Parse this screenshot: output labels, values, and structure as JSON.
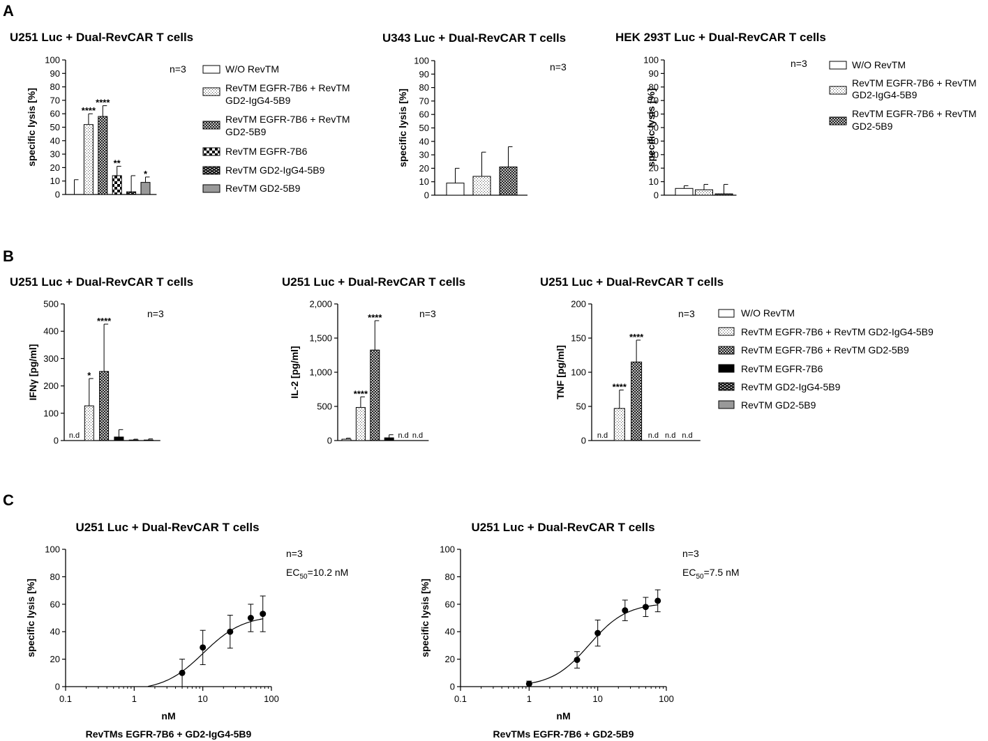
{
  "panels": {
    "a": "A",
    "b": "B",
    "c": "C"
  },
  "legend_bars": {
    "wo": "W/O RevTM",
    "egfr_igg4_l1": "RevTM EGFR-7B6 + RevTM",
    "egfr_igg4_l2": "GD2-IgG4-5B9",
    "egfr_5b9_l1": "RevTM EGFR-7B6 + RevTM",
    "egfr_5b9_l2": "GD2-5B9",
    "egfr": "RevTM EGFR-7B6",
    "igg4": "RevTM GD2-IgG4-5B9",
    "gd2": "RevTM GD2-5B9"
  },
  "legend_b": {
    "wo": "W/O RevTM",
    "egfr_igg4": "RevTM EGFR-7B6 + RevTM GD2-IgG4-5B9",
    "egfr_5b9": "RevTM EGFR-7B6 + RevTM GD2-5B9",
    "egfr": "RevTM EGFR-7B6",
    "igg4": "RevTM GD2-IgG4-5B9",
    "gd2": "RevTM GD2-5B9"
  },
  "colors": {
    "black": "#000000",
    "gray": "#999999",
    "white": "#ffffff"
  },
  "chart_data": [
    {
      "id": "a1",
      "type": "bar",
      "title": "U251 Luc + Dual-RevCAR T cells",
      "ylabel": "specific lysis [%]",
      "xlabel": "",
      "note": "n=3",
      "ylim": [
        0,
        100
      ],
      "yticks": [
        "0",
        "10",
        "20",
        "30",
        "40",
        "50",
        "60",
        "70",
        "80",
        "90",
        "100"
      ],
      "categories": [
        "W/O RevTM",
        "RevTM EGFR-7B6 + RevTM GD2-IgG4-5B9",
        "RevTM EGFR-7B6 + RevTM GD2-5B9",
        "RevTM EGFR-7B6",
        "RevTM GD2-IgG4-5B9",
        "RevTM GD2-5B9"
      ],
      "values": [
        0,
        52,
        58,
        14,
        2,
        9
      ],
      "errors": [
        11,
        8,
        8,
        7,
        12,
        4
      ],
      "significance": [
        "",
        "****",
        "****",
        "**",
        "",
        "*"
      ]
    },
    {
      "id": "a2",
      "type": "bar",
      "title": "U343 Luc + Dual-RevCAR T cells",
      "ylabel": "specific lysis [%]",
      "xlabel": "",
      "note": "n=3",
      "ylim": [
        0,
        100
      ],
      "yticks": [
        "0",
        "10",
        "20",
        "30",
        "40",
        "50",
        "60",
        "70",
        "80",
        "90",
        "100"
      ],
      "categories": [
        "W/O RevTM",
        "RevTM EGFR-7B6 + RevTM GD2-IgG4-5B9",
        "RevTM EGFR-7B6 + RevTM GD2-5B9"
      ],
      "values": [
        9,
        14,
        21
      ],
      "errors": [
        11,
        18,
        15
      ],
      "significance": [
        "",
        "",
        ""
      ]
    },
    {
      "id": "a3",
      "type": "bar",
      "title": "HEK 293T Luc + Dual-RevCAR T cells",
      "ylabel": "specific lysis [%]",
      "xlabel": "",
      "note": "n=3",
      "ylim": [
        0,
        100
      ],
      "yticks": [
        "0",
        "10",
        "20",
        "30",
        "40",
        "50",
        "60",
        "70",
        "80",
        "90",
        "100"
      ],
      "categories": [
        "W/O RevTM",
        "RevTM EGFR-7B6 + RevTM GD2-IgG4-5B9",
        "RevTM EGFR-7B6 + RevTM GD2-5B9"
      ],
      "values": [
        5,
        4,
        1
      ],
      "errors": [
        2,
        4,
        7
      ],
      "significance": [
        "",
        "",
        ""
      ]
    },
    {
      "id": "b1",
      "type": "bar",
      "title": "U251 Luc + Dual-RevCAR T cells",
      "ylabel": "IFNγ [pg/ml]",
      "xlabel": "",
      "note": "n=3",
      "ylim": [
        0,
        500
      ],
      "yticks": [
        "0",
        "100",
        "200",
        "300",
        "400",
        "500"
      ],
      "categories": [
        "W/O RevTM",
        "RevTM EGFR-7B6 + RevTM GD2-IgG4-5B9",
        "RevTM EGFR-7B6 + RevTM GD2-5B9",
        "RevTM EGFR-7B6",
        "RevTM GD2-IgG4-5B9",
        "RevTM GD2-5B9"
      ],
      "values": [
        0,
        127,
        253,
        13,
        2,
        2
      ],
      "errors": [
        0,
        100,
        173,
        27,
        3,
        4
      ],
      "significance": [
        "",
        "*",
        "****",
        "",
        "",
        ""
      ],
      "annotations": [
        "n.d",
        "",
        "",
        "",
        "",
        ""
      ]
    },
    {
      "id": "b2",
      "type": "bar",
      "title": "U251 Luc + Dual-RevCAR T cells",
      "ylabel": "IL-2 [pg/ml]",
      "xlabel": "",
      "note": "n=3",
      "ylim": [
        0,
        2000
      ],
      "yticks": [
        "0",
        "500",
        "1,000",
        "1,500",
        "2,000"
      ],
      "categories": [
        "W/O RevTM",
        "RevTM EGFR-7B6 + RevTM GD2-IgG4-5B9",
        "RevTM EGFR-7B6 + RevTM GD2-5B9",
        "RevTM EGFR-7B6",
        "RevTM GD2-IgG4-5B9",
        "RevTM GD2-5B9"
      ],
      "values": [
        20,
        485,
        1325,
        40,
        0,
        0
      ],
      "errors": [
        15,
        155,
        430,
        45,
        0,
        0
      ],
      "significance": [
        "",
        "****",
        "****",
        "",
        "",
        ""
      ],
      "annotations": [
        "",
        "",
        "",
        "",
        "n.d",
        "n.d"
      ]
    },
    {
      "id": "b3",
      "type": "bar",
      "title": "U251 Luc + Dual-RevCAR T cells",
      "ylabel": "TNF [pg/ml]",
      "xlabel": "",
      "note": "n=3",
      "ylim": [
        0,
        200
      ],
      "yticks": [
        "0",
        "50",
        "100",
        "150",
        "200"
      ],
      "categories": [
        "W/O RevTM",
        "RevTM EGFR-7B6 + RevTM GD2-IgG4-5B9",
        "RevTM EGFR-7B6 + RevTM GD2-5B9",
        "RevTM EGFR-7B6",
        "RevTM GD2-IgG4-5B9",
        "RevTM GD2-5B9"
      ],
      "values": [
        0,
        47,
        115,
        0,
        0,
        0
      ],
      "errors": [
        0,
        27,
        32,
        0,
        0,
        0
      ],
      "significance": [
        "",
        "****",
        "****",
        "",
        "",
        ""
      ],
      "annotations": [
        "n.d",
        "",
        "",
        "n.d",
        "n.d",
        "n.d"
      ]
    },
    {
      "id": "c1",
      "type": "scatter",
      "title": "U251 Luc + Dual-RevCAR T cells",
      "ylabel": "specific lysis [%]",
      "xlabel": "nM",
      "xscale": "log",
      "subtitle": "RevTMs EGFR-7B6 + GD2-IgG4-5B9",
      "note": "n=3",
      "ec50_label": "EC",
      "ec50_sub": "50",
      "ec50_value": "=10.2 nM",
      "xlim": [
        0.1,
        100
      ],
      "ylim": [
        0,
        100
      ],
      "xticks": [
        "0.1",
        "1",
        "10",
        "100"
      ],
      "yticks": [
        "0",
        "20",
        "40",
        "60",
        "80",
        "100"
      ],
      "x": [
        5,
        10,
        25,
        50,
        75
      ],
      "y": [
        10,
        28.5,
        40,
        50,
        53
      ],
      "errors": [
        10,
        12.5,
        12,
        10,
        13
      ],
      "fit": {
        "bottom": -3,
        "top": 52,
        "ec50": 10.2,
        "hill": 1.5
      }
    },
    {
      "id": "c2",
      "type": "scatter",
      "title": "U251 Luc + Dual-RevCAR T cells",
      "ylabel": "specific lysis [%]",
      "xlabel": "nM",
      "xscale": "log",
      "subtitle": "RevTMs EGFR-7B6 + GD2-5B9",
      "note": "n=3",
      "ec50_label": "EC",
      "ec50_sub": "50",
      "ec50_value": "=7.5 nM",
      "xlim": [
        0.1,
        100
      ],
      "ylim": [
        0,
        100
      ],
      "xticks": [
        "0.1",
        "1",
        "10",
        "100"
      ],
      "yticks": [
        "0",
        "20",
        "40",
        "60",
        "80",
        "100"
      ],
      "x": [
        1,
        5,
        10,
        25,
        50,
        75
      ],
      "y": [
        2,
        19.5,
        39,
        55.5,
        58,
        62.5
      ],
      "errors": [
        2,
        6,
        9.5,
        7.5,
        7,
        8
      ],
      "fit": {
        "bottom": 0,
        "top": 61,
        "ec50": 7.5,
        "hill": 1.6
      }
    }
  ]
}
